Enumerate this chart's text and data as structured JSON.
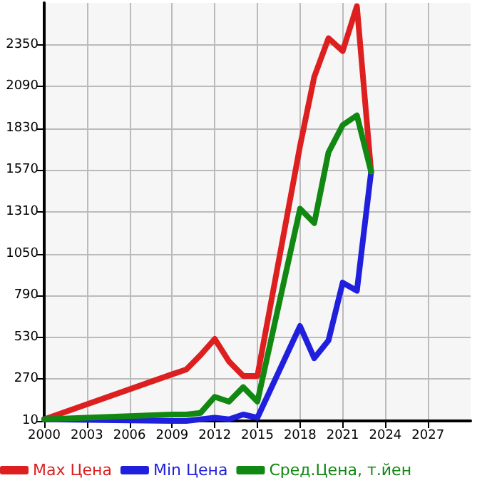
{
  "chart_data": {
    "type": "line",
    "x": [
      2000,
      2009,
      2010,
      2011,
      2012,
      2013,
      2014,
      2015,
      2018,
      2019,
      2020,
      2021,
      2022,
      2023
    ],
    "series": [
      {
        "name": "Max Цена",
        "color": "#dd1f1f",
        "values": [
          20,
          300,
          330,
          420,
          520,
          380,
          290,
          290,
          1720,
          2150,
          2390,
          2310,
          2590,
          1560
        ]
      },
      {
        "name": "Min Цена",
        "color": "#1f1fdd",
        "values": [
          20,
          10,
          10,
          20,
          30,
          20,
          50,
          30,
          600,
          400,
          510,
          870,
          820,
          1560
        ]
      },
      {
        "name": "Сред.Цена, т.йен",
        "color": "#118811",
        "values": [
          20,
          50,
          50,
          60,
          160,
          130,
          220,
          130,
          1330,
          1240,
          1680,
          1850,
          1910,
          1560
        ]
      }
    ],
    "xlim": [
      2000,
      2030
    ],
    "xticks": [
      2000,
      2003,
      2006,
      2009,
      2012,
      2015,
      2018,
      2021,
      2024,
      2027
    ],
    "ylim": [
      10,
      2610
    ],
    "yticks": [
      10,
      270,
      530,
      790,
      1050,
      1310,
      1570,
      1830,
      2090,
      2350
    ],
    "grid": true,
    "legend": "bottom",
    "marker": "none",
    "line_style": "solid"
  }
}
